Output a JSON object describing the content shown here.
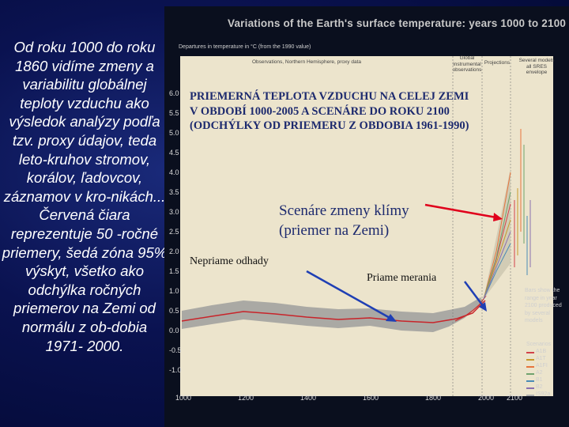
{
  "left_text": "Od roku 1000 do roku 1860 vidíme zmeny a variabilitu globálnej teploty vzduchu ako výsledok analýzy podľa tzv. proxy údajov, teda leto-kruhov stromov, korálov, ľadovcov, záznamov v kro-nikách... Červená čiara reprezentuje 50 -ročné priemery, šedá zóna 95% výskyt, všetko ako odchýlka ročných priemerov na Zemi od normálu z ob-dobia 1971- 2000.",
  "figure": {
    "title": "Variations of the Earth's surface temperature: years 1000 to 2100",
    "subtitle": "Departures in temperature in °C (from the 1990 value)",
    "ann_obs": "Observations, Northern Hemisphere, proxy data",
    "ann_global": "Global instrumental observations",
    "ann_proj": "Projections",
    "ann_models": "Several models all SRES envelope",
    "bars_note": "Bars show the range in year 2100 produced by several models",
    "scenarios_head": "Scenarios",
    "scenarios": [
      "A1B",
      "A1T",
      "A1FI",
      "A2",
      "B1",
      "B2",
      "IS92a"
    ],
    "scenario_colors": [
      "#d2424a",
      "#c79a2a",
      "#e7743c",
      "#6fa36d",
      "#4a8bb6",
      "#8a6fb0",
      "#b0b0b0"
    ],
    "y_ticks": [
      "6.0",
      "5.5",
      "5.0",
      "4.5",
      "4.0",
      "3.5",
      "3.0",
      "2.5",
      "2.0",
      "1.5",
      "1.0",
      "0.5",
      "0.0",
      "-0.5",
      "-1.0"
    ],
    "x_ticks": [
      "1000",
      "1200",
      "1400",
      "1600",
      "1800",
      "2000",
      "2100"
    ]
  },
  "overlay": {
    "title": "PRIEMERNÁ TEPLOTA VZDUCHU NA CELEJ ZEMI  V OBDOBÍ 1000-2005 A SCENÁRE DO ROKU 2100   (ODCHÝLKY OD PRIEMERU Z OBDOBIA 1961-1990)",
    "scenarios_label": "Scenáre zmeny klímy (priemer na Zemi)",
    "indirect": "Nepriame odhady",
    "direct": "Priame merania"
  },
  "colors": {
    "accent_red": "#e0001b",
    "arrow_blue": "#1f3fb4",
    "plot_bg": "#ece4cc"
  }
}
